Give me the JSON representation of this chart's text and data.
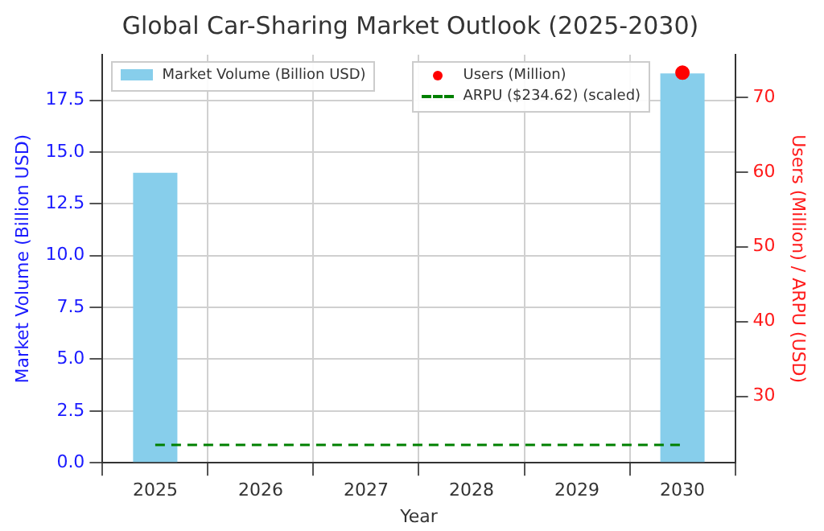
{
  "chart_data": {
    "type": "bar",
    "title": "Global Car-Sharing Market Outlook (2025-2030)",
    "xlabel": "Year",
    "ylabel": "Market Volume (Billion USD)",
    "y2label": "Users (Million) / ARPU (USD)",
    "categories": [
      "2025",
      "2026",
      "2027",
      "2028",
      "2029",
      "2030"
    ],
    "series": [
      {
        "name": "Market Volume (Billion USD)",
        "color": "#87ceeb",
        "values": [
          14.0,
          null,
          null,
          null,
          null,
          18.8
        ]
      },
      {
        "name": "Users (Million)",
        "type": "scatter",
        "axis": "y2",
        "marker": "circle",
        "color": "#ff0000",
        "values": [
          null,
          null,
          null,
          null,
          null,
          73.3
        ]
      },
      {
        "name": "ARPU ($234.62) (scaled)",
        "type": "line",
        "axis": "y2",
        "line_style": "dashed",
        "marker": "none",
        "color": "#008000",
        "values": [
          23.5,
          23.5,
          23.5,
          23.5,
          23.5,
          23.5
        ]
      }
    ],
    "ylim": [
      0,
      19.7
    ],
    "yticks": [
      {
        "value": 0,
        "label": "0.0"
      },
      {
        "value": 2.5,
        "label": "2.5"
      },
      {
        "value": 5,
        "label": "5.0"
      },
      {
        "value": 7.5,
        "label": "7.5"
      },
      {
        "value": 10,
        "label": "10.0"
      },
      {
        "value": 12.5,
        "label": "12.5"
      },
      {
        "value": 15,
        "label": "15.0"
      },
      {
        "value": 17.5,
        "label": "17.5"
      }
    ],
    "y2lim": [
      21.1,
      75.7
    ],
    "y2ticks": [
      30,
      40,
      50,
      60,
      70
    ],
    "grid": true,
    "legend": "top"
  }
}
